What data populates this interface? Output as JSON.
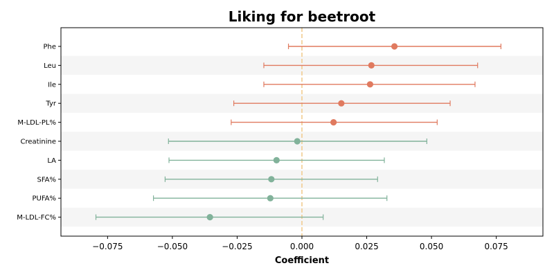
{
  "colors": {
    "positive": "#e07a5f",
    "negative": "#81b29a",
    "zero_line": "#f2cc8f",
    "band": "#f5f5f5"
  },
  "chart_data": {
    "type": "forest",
    "title": "Liking for beetroot",
    "xlabel": "Coefficient",
    "ylabel": "",
    "xlim": [
      -0.093,
      0.093
    ],
    "xticks": [
      -0.075,
      -0.05,
      -0.025,
      0.0,
      0.025,
      0.05,
      0.075
    ],
    "xtick_labels": [
      "−0.075",
      "−0.050",
      "−0.025",
      "0.000",
      "0.025",
      "0.050",
      "0.075"
    ],
    "reference_line": 0.0,
    "grid": false,
    "rows": [
      {
        "label": "Phe",
        "estimate": 0.0357,
        "ci_low": -0.0052,
        "ci_high": 0.0768,
        "group": "positive"
      },
      {
        "label": "Leu",
        "estimate": 0.0268,
        "ci_low": -0.0147,
        "ci_high": 0.0678,
        "group": "positive"
      },
      {
        "label": "Ile",
        "estimate": 0.0263,
        "ci_low": -0.0147,
        "ci_high": 0.0668,
        "group": "positive"
      },
      {
        "label": "Tyr",
        "estimate": 0.0152,
        "ci_low": -0.0263,
        "ci_high": 0.0572,
        "group": "positive"
      },
      {
        "label": "M-LDL-PL%",
        "estimate": 0.0122,
        "ci_low": -0.0273,
        "ci_high": 0.0522,
        "group": "positive"
      },
      {
        "label": "Creatinine",
        "estimate": -0.0018,
        "ci_low": -0.0515,
        "ci_high": 0.0482,
        "group": "negative"
      },
      {
        "label": "LA",
        "estimate": -0.0098,
        "ci_low": -0.0513,
        "ci_high": 0.0318,
        "group": "negative"
      },
      {
        "label": "SFA%",
        "estimate": -0.0118,
        "ci_low": -0.0528,
        "ci_high": 0.0292,
        "group": "negative"
      },
      {
        "label": "PUFA%",
        "estimate": -0.0122,
        "ci_low": -0.0573,
        "ci_high": 0.0328,
        "group": "negative"
      },
      {
        "label": "M-LDL-FC%",
        "estimate": -0.0355,
        "ci_low": -0.0795,
        "ci_high": 0.0082,
        "group": "negative"
      }
    ]
  }
}
